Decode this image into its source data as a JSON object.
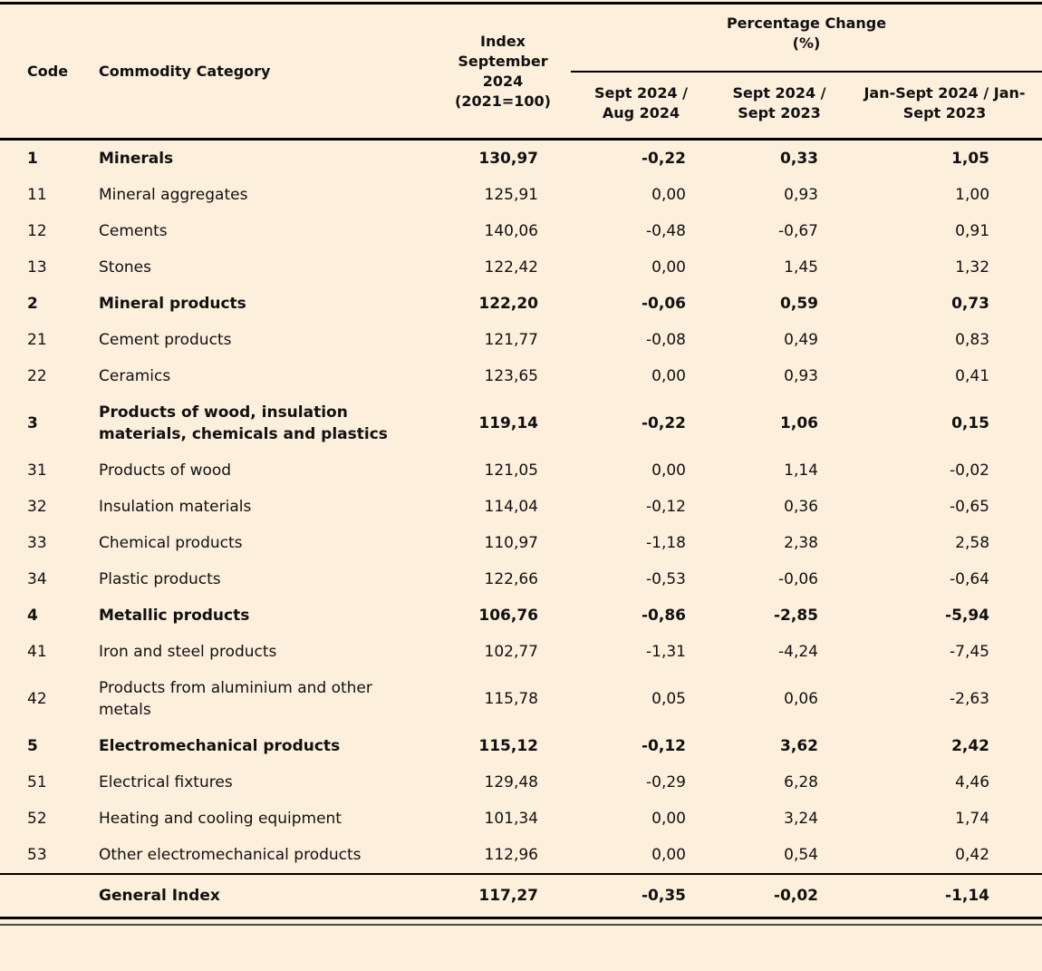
{
  "page": {
    "background_color": "#fcefdc",
    "text_color": "#111111",
    "rule_color": "#000000"
  },
  "table": {
    "columns": {
      "code": "Code",
      "category": "Commodity Category",
      "index": "Index September 2024 (2021=100)",
      "pct_group_line1": "Percentage Change",
      "pct_group_line2": "(%)",
      "pct_cols": [
        "Sept 2024 / Aug 2024",
        "Sept 2024 / Sept 2023",
        "Jan-Sept 2024 / Jan-Sept 2023"
      ]
    },
    "rows": [
      {
        "code": "1",
        "category": "Minerals",
        "index": "130,97",
        "m2m": "-0,22",
        "y2y": "0,33",
        "ytd": "1,05",
        "bold": true
      },
      {
        "code": "11",
        "category": "Mineral aggregates",
        "index": "125,91",
        "m2m": "0,00",
        "y2y": "0,93",
        "ytd": "1,00",
        "bold": false
      },
      {
        "code": "12",
        "category": "Cements",
        "index": "140,06",
        "m2m": "-0,48",
        "y2y": "-0,67",
        "ytd": "0,91",
        "bold": false
      },
      {
        "code": "13",
        "category": "Stones",
        "index": "122,42",
        "m2m": "0,00",
        "y2y": "1,45",
        "ytd": "1,32",
        "bold": false
      },
      {
        "code": "2",
        "category": "Mineral products",
        "index": "122,20",
        "m2m": "-0,06",
        "y2y": "0,59",
        "ytd": "0,73",
        "bold": true
      },
      {
        "code": "21",
        "category": "Cement products",
        "index": "121,77",
        "m2m": "-0,08",
        "y2y": "0,49",
        "ytd": "0,83",
        "bold": false
      },
      {
        "code": "22",
        "category": "Ceramics",
        "index": "123,65",
        "m2m": "0,00",
        "y2y": "0,93",
        "ytd": "0,41",
        "bold": false
      },
      {
        "code": "3",
        "category": "Products of wood, insulation materials, chemicals and plastics",
        "index": "119,14",
        "m2m": "-0,22",
        "y2y": "1,06",
        "ytd": "0,15",
        "bold": true
      },
      {
        "code": "31",
        "category": "Products of wood",
        "index": "121,05",
        "m2m": "0,00",
        "y2y": "1,14",
        "ytd": "-0,02",
        "bold": false
      },
      {
        "code": "32",
        "category": "Insulation materials",
        "index": "114,04",
        "m2m": "-0,12",
        "y2y": "0,36",
        "ytd": "-0,65",
        "bold": false
      },
      {
        "code": "33",
        "category": "Chemical products",
        "index": "110,97",
        "m2m": "-1,18",
        "y2y": "2,38",
        "ytd": "2,58",
        "bold": false
      },
      {
        "code": "34",
        "category": "Plastic products",
        "index": "122,66",
        "m2m": "-0,53",
        "y2y": "-0,06",
        "ytd": "-0,64",
        "bold": false
      },
      {
        "code": "4",
        "category": "Metallic products",
        "index": "106,76",
        "m2m": "-0,86",
        "y2y": "-2,85",
        "ytd": "-5,94",
        "bold": true
      },
      {
        "code": "41",
        "category": "Iron and steel products",
        "index": "102,77",
        "m2m": "-1,31",
        "y2y": "-4,24",
        "ytd": "-7,45",
        "bold": false
      },
      {
        "code": "42",
        "category": "Products from aluminium and other metals",
        "index": "115,78",
        "m2m": "0,05",
        "y2y": "0,06",
        "ytd": "-2,63",
        "bold": false
      },
      {
        "code": "5",
        "category": "Electromechanical products",
        "index": "115,12",
        "m2m": "-0,12",
        "y2y": "3,62",
        "ytd": "2,42",
        "bold": true
      },
      {
        "code": "51",
        "category": "Electrical fixtures",
        "index": "129,48",
        "m2m": "-0,29",
        "y2y": "6,28",
        "ytd": "4,46",
        "bold": false
      },
      {
        "code": "52",
        "category": "Heating and cooling equipment",
        "index": "101,34",
        "m2m": "0,00",
        "y2y": "3,24",
        "ytd": "1,74",
        "bold": false
      },
      {
        "code": "53",
        "category": "Other electromechanical products",
        "index": "112,96",
        "m2m": "0,00",
        "y2y": "0,54",
        "ytd": "0,42",
        "bold": false
      }
    ],
    "footer": {
      "label": "General Index",
      "index": "117,27",
      "m2m": "-0,35",
      "y2y": "-0,02",
      "ytd": "-1,14"
    }
  }
}
